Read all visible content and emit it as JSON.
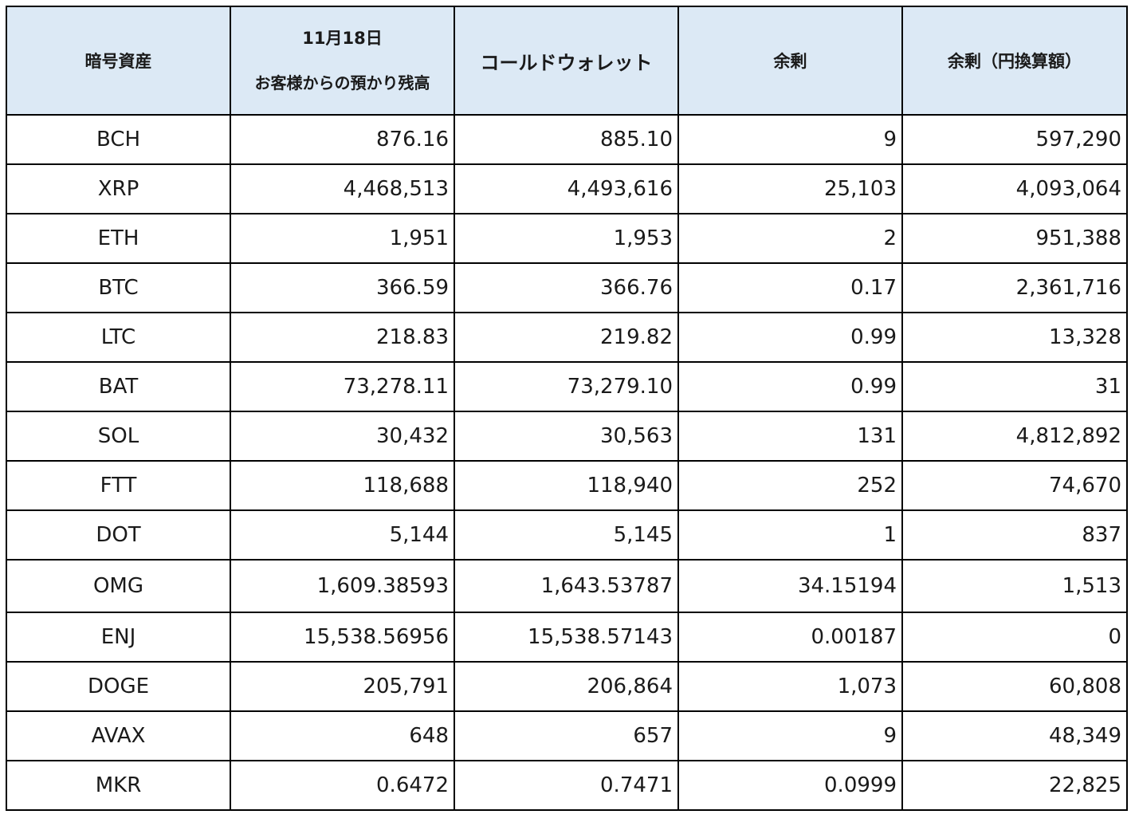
{
  "table": {
    "headers": {
      "asset": "暗号資産",
      "customer_date": "11月18日",
      "customer_sub": "お客様からの預かり残高",
      "cold_wallet": "コールドウォレット",
      "surplus": "余剰",
      "surplus_jpy": "余剰（円換算額）"
    },
    "rows": [
      {
        "asset": "BCH",
        "customer": "876.16",
        "cold": "885.10",
        "surplus": "9",
        "jpy": "597,290"
      },
      {
        "asset": "XRP",
        "customer": "4,468,513",
        "cold": "4,493,616",
        "surplus": "25,103",
        "jpy": "4,093,064"
      },
      {
        "asset": "ETH",
        "customer": "1,951",
        "cold": "1,953",
        "surplus": "2",
        "jpy": "951,388"
      },
      {
        "asset": "BTC",
        "customer": "366.59",
        "cold": "366.76",
        "surplus": "0.17",
        "jpy": "2,361,716"
      },
      {
        "asset": "LTC",
        "customer": "218.83",
        "cold": "219.82",
        "surplus": "0.99",
        "jpy": "13,328"
      },
      {
        "asset": "BAT",
        "customer": "73,278.11",
        "cold": "73,279.10",
        "surplus": "0.99",
        "jpy": "31"
      },
      {
        "asset": "SOL",
        "customer": "30,432",
        "cold": "30,563",
        "surplus": "131",
        "jpy": "4,812,892"
      },
      {
        "asset": "FTT",
        "customer": "118,688",
        "cold": "118,940",
        "surplus": "252",
        "jpy": "74,670"
      },
      {
        "asset": "DOT",
        "customer": "5,144",
        "cold": "5,145",
        "surplus": "1",
        "jpy": "837"
      },
      {
        "asset": "OMG",
        "customer": "1,609.38593",
        "cold": "1,643.53787",
        "surplus": "34.15194",
        "jpy": "1,513"
      },
      {
        "asset": "ENJ",
        "customer": "15,538.56956",
        "cold": "15,538.57143",
        "surplus": "0.00187",
        "jpy": "0"
      },
      {
        "asset": "DOGE",
        "customer": "205,791",
        "cold": "206,864",
        "surplus": "1,073",
        "jpy": "60,808"
      },
      {
        "asset": "AVAX",
        "customer": "648",
        "cold": "657",
        "surplus": "9",
        "jpy": "48,349"
      },
      {
        "asset": "MKR",
        "customer": "0.6472",
        "cold": "0.7471",
        "surplus": "0.0999",
        "jpy": "22,825"
      }
    ]
  },
  "colors": {
    "header_bg": "#dce9f5",
    "border": "#000000"
  }
}
